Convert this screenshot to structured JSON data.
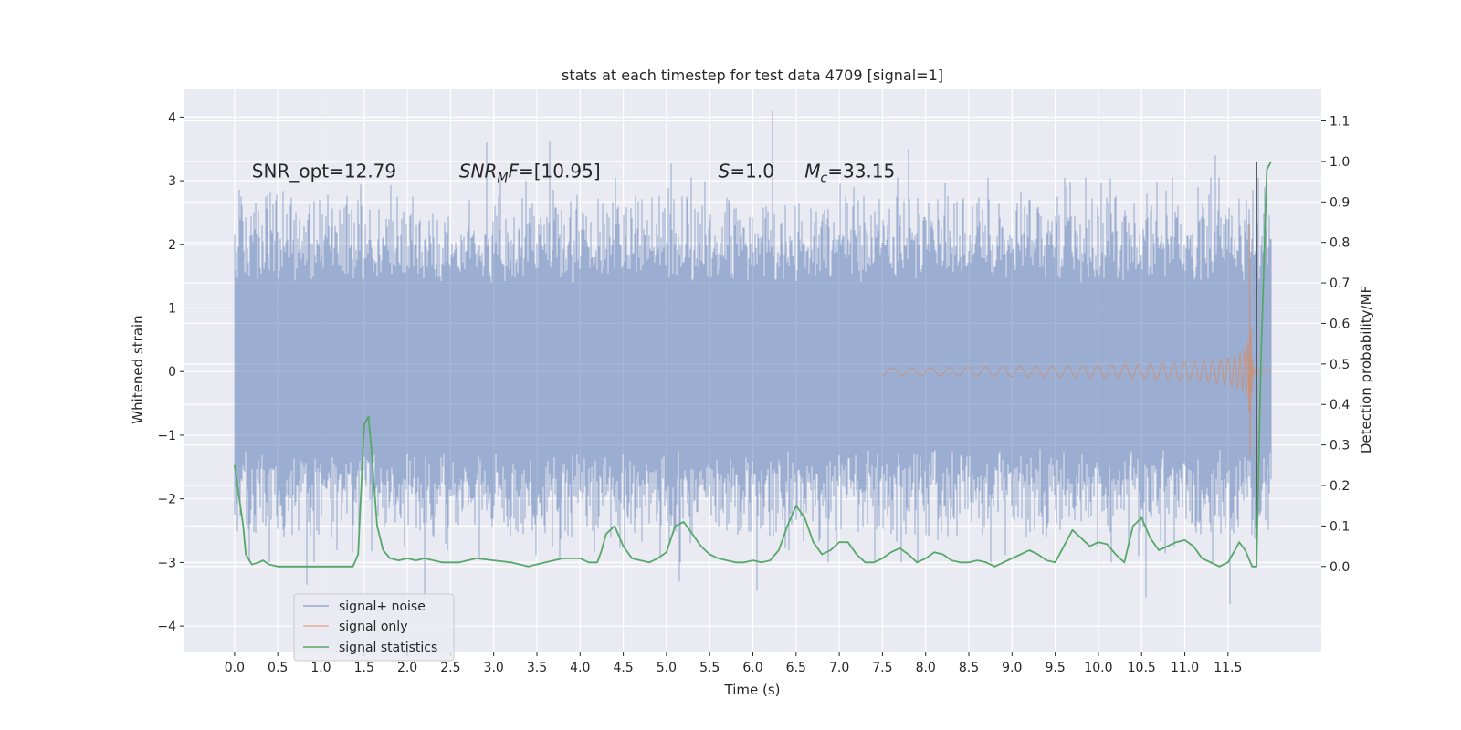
{
  "chart_data": {
    "type": "line",
    "title": "stats at each timestep for test data 4709 [signal=1]",
    "xlabel": "Time (s)",
    "ylabel_left": "Whitened strain",
    "ylabel_right": "Detection probability/MF",
    "xlim": [
      -0.58,
      12.58
    ],
    "ylim_left": [
      -4.4,
      4.45
    ],
    "ylim_right": [
      -0.21,
      1.18
    ],
    "x_ticks": [
      0.0,
      0.5,
      1.0,
      1.5,
      2.0,
      2.5,
      3.0,
      3.5,
      4.0,
      4.5,
      5.0,
      5.5,
      6.0,
      6.5,
      7.0,
      7.5,
      8.0,
      8.5,
      9.0,
      9.5,
      10.0,
      10.5,
      11.0,
      11.5
    ],
    "x_tick_labels": [
      "0.0",
      "0.5",
      "1.0",
      "1.5",
      "2.0",
      "2.5",
      "3.0",
      "3.5",
      "4.0",
      "4.5",
      "5.0",
      "5.5",
      "6.0",
      "6.5",
      "7.0",
      "7.5",
      "8.0",
      "8.5",
      "9.0",
      "9.5",
      "10.0",
      "10.5",
      "11.0",
      "11.5"
    ],
    "y_left_ticks": [
      4,
      3,
      2,
      1,
      0,
      -1,
      -2,
      -3,
      -4
    ],
    "y_left_tick_labels": [
      "4",
      "3",
      "2",
      "1",
      "0",
      "−1",
      "−2",
      "−3",
      "−4"
    ],
    "y_right_ticks": [
      1.1,
      1.0,
      0.9,
      0.8,
      0.7,
      0.6,
      0.5,
      0.4,
      0.3,
      0.2,
      0.1,
      0.0
    ],
    "y_right_tick_labels": [
      "1.1",
      "1.0",
      "0.9",
      "0.8",
      "0.7",
      "0.6",
      "0.5",
      "0.4",
      "0.3",
      "0.2",
      "0.1",
      "0.0"
    ],
    "grid": true,
    "legend_position": "lower-left",
    "colors": {
      "noise": "#4c72b0",
      "signal": "#dd8452",
      "stats": "#55a868",
      "vline": "#555555",
      "background": "#eaeaf2"
    },
    "series": [
      {
        "name": "signal+ noise",
        "kind": "noise-trace",
        "axis": "left",
        "x_range": [
          0.0,
          12.0
        ],
        "core_band": [
          -1.2,
          1.35
        ],
        "extremes": [
          {
            "x": 0.08,
            "y": 2.75
          },
          {
            "x": 0.36,
            "y": 2.75
          },
          {
            "x": 2.92,
            "y": 3.6
          },
          {
            "x": 3.65,
            "y": 3.62
          },
          {
            "x": 5.05,
            "y": 3.27
          },
          {
            "x": 6.23,
            "y": 4.1
          },
          {
            "x": 7.8,
            "y": 3.5
          },
          {
            "x": 11.35,
            "y": 3.4
          },
          {
            "x": 0.84,
            "y": -3.35
          },
          {
            "x": 2.2,
            "y": -3.55
          },
          {
            "x": 5.15,
            "y": -3.3
          },
          {
            "x": 6.05,
            "y": -3.45
          },
          {
            "x": 10.55,
            "y": -3.55
          },
          {
            "x": 11.52,
            "y": -3.65
          }
        ]
      },
      {
        "name": "signal only",
        "kind": "chirp",
        "axis": "left",
        "x_range": [
          7.5,
          12.0
        ],
        "merger_time": 11.75,
        "peak_amplitude": 2.6
      },
      {
        "name": "signal statistics",
        "kind": "line",
        "axis": "right",
        "x": [
          0.0,
          0.1,
          0.13,
          0.2,
          0.28,
          0.33,
          0.4,
          0.5,
          0.6,
          0.8,
          1.0,
          1.2,
          1.37,
          1.43,
          1.5,
          1.55,
          1.58,
          1.65,
          1.72,
          1.8,
          1.9,
          2.0,
          2.1,
          2.2,
          2.4,
          2.6,
          2.8,
          3.0,
          3.2,
          3.4,
          3.6,
          3.8,
          4.0,
          4.1,
          4.2,
          4.25,
          4.3,
          4.4,
          4.5,
          4.6,
          4.7,
          4.8,
          4.9,
          5.0,
          5.1,
          5.2,
          5.3,
          5.4,
          5.5,
          5.6,
          5.7,
          5.8,
          5.9,
          6.0,
          6.1,
          6.2,
          6.3,
          6.4,
          6.5,
          6.6,
          6.7,
          6.8,
          6.9,
          7.0,
          7.1,
          7.2,
          7.3,
          7.4,
          7.5,
          7.6,
          7.7,
          7.8,
          7.9,
          8.0,
          8.1,
          8.2,
          8.3,
          8.4,
          8.5,
          8.6,
          8.7,
          8.8,
          8.9,
          9.0,
          9.1,
          9.2,
          9.3,
          9.4,
          9.5,
          9.6,
          9.7,
          9.8,
          9.9,
          10.0,
          10.1,
          10.2,
          10.3,
          10.4,
          10.5,
          10.6,
          10.7,
          10.8,
          10.9,
          11.0,
          11.1,
          11.2,
          11.3,
          11.4,
          11.5,
          11.58,
          11.63,
          11.7,
          11.78,
          11.83,
          11.88,
          11.95,
          12.0
        ],
        "y": [
          0.25,
          0.1,
          0.03,
          0.005,
          0.01,
          0.015,
          0.005,
          0.0,
          0.0,
          0.0,
          0.0,
          0.0,
          0.0,
          0.03,
          0.35,
          0.37,
          0.3,
          0.1,
          0.04,
          0.02,
          0.015,
          0.02,
          0.015,
          0.02,
          0.01,
          0.01,
          0.02,
          0.015,
          0.01,
          0.0,
          0.01,
          0.02,
          0.02,
          0.01,
          0.01,
          0.04,
          0.08,
          0.1,
          0.05,
          0.02,
          0.015,
          0.01,
          0.02,
          0.035,
          0.1,
          0.11,
          0.08,
          0.05,
          0.03,
          0.02,
          0.015,
          0.01,
          0.01,
          0.015,
          0.01,
          0.015,
          0.04,
          0.1,
          0.15,
          0.12,
          0.06,
          0.03,
          0.04,
          0.06,
          0.06,
          0.03,
          0.01,
          0.01,
          0.02,
          0.035,
          0.045,
          0.03,
          0.01,
          0.02,
          0.035,
          0.03,
          0.015,
          0.01,
          0.01,
          0.015,
          0.01,
          0.0,
          0.01,
          0.02,
          0.03,
          0.04,
          0.03,
          0.015,
          0.01,
          0.05,
          0.09,
          0.07,
          0.05,
          0.06,
          0.055,
          0.03,
          0.01,
          0.1,
          0.12,
          0.07,
          0.04,
          0.05,
          0.06,
          0.065,
          0.05,
          0.02,
          0.01,
          0.0,
          0.01,
          0.04,
          0.06,
          0.04,
          0.0,
          0.0,
          0.5,
          0.98,
          1.0
        ]
      }
    ],
    "vertical_line": {
      "x": 11.83,
      "y_range": [
        0.0,
        1.0
      ]
    },
    "annotations": [
      {
        "id": "snr-opt",
        "x": 0.2,
        "y": 3.15,
        "segments": [
          {
            "text": "SNR_opt=12.79",
            "style": "normal"
          }
        ]
      },
      {
        "id": "snr-mf",
        "x": 2.6,
        "y": 3.15,
        "segments": [
          {
            "text": "SNR",
            "style": "italic"
          },
          {
            "text": "M",
            "style": "italic-sub"
          },
          {
            "text": "F",
            "style": "italic"
          },
          {
            "text": "=[10.95]",
            "style": "normal"
          }
        ]
      },
      {
        "id": "s-value",
        "x": 5.6,
        "y": 3.15,
        "segments": [
          {
            "text": "S",
            "style": "italic"
          },
          {
            "text": "=1.0",
            "style": "normal"
          }
        ]
      },
      {
        "id": "mc-value",
        "x": 6.6,
        "y": 3.15,
        "segments": [
          {
            "text": "M",
            "style": "italic"
          },
          {
            "text": "c",
            "style": "italic-sub"
          },
          {
            "text": "=33.15",
            "style": "normal"
          }
        ]
      }
    ]
  }
}
